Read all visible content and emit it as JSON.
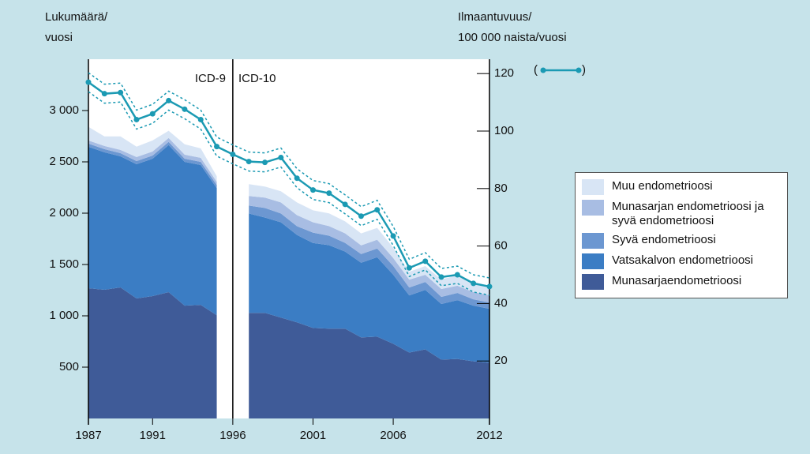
{
  "chart_data": {
    "type": "stacked-area",
    "y_label": [
      "Lukumäärä/",
      "vuosi"
    ],
    "y2_label": [
      "Ilmaantuvuus/",
      "100 000 naista/vuosi"
    ],
    "annotations": [
      "ICD-9",
      "ICD-10"
    ],
    "divider": 1996,
    "x": [
      1987,
      1988,
      1989,
      1990,
      1991,
      1992,
      1993,
      1994,
      1995,
      1996,
      1997,
      1998,
      1999,
      2000,
      2001,
      2002,
      2003,
      2004,
      2005,
      2006,
      2007,
      2008,
      2009,
      2010,
      2011,
      2012
    ],
    "xlim": [
      1987,
      2012
    ],
    "xticks": [
      1987,
      1991,
      1996,
      2001,
      2006,
      2012
    ],
    "ylim": [
      0,
      3500
    ],
    "yticks": [
      500,
      {
        "value": 1000,
        "label": "1 000"
      },
      {
        "value": 1500,
        "label": "1 500"
      },
      {
        "value": 2000,
        "label": "2 000"
      },
      {
        "value": 2500,
        "label": "2 500"
      },
      {
        "value": 3000,
        "label": "3 000"
      }
    ],
    "y2lim": [
      0,
      125
    ],
    "y2ticks": [
      20,
      40,
      60,
      80,
      100,
      120
    ],
    "series": [
      {
        "name": "Munasarjaendometrioosi",
        "color": "#3f5b98",
        "values": [
          1269,
          1254,
          1277,
          1169,
          1192,
          1231,
          1099,
          1107,
          1006,
          null,
          1029,
          1029,
          983,
          937,
          882,
          875,
          875,
          789,
          797,
          728,
          642,
          673,
          573,
          580,
          557,
          542
        ]
      },
      {
        "name": "Vatsakalvon endometrioosi",
        "color": "#3b7dc4",
        "values": [
          1378,
          1339,
          1277,
          1308,
          1339,
          1432,
          1401,
          1362,
          1238,
          null,
          968,
          929,
          929,
          851,
          828,
          813,
          751,
          728,
          774,
          673,
          557,
          580,
          542,
          573,
          542,
          526
        ]
      },
      {
        "name": "Syvä endometrioosi",
        "color": "#6c97d1",
        "values": [
          31,
          31,
          31,
          31,
          31,
          31,
          31,
          31,
          31,
          null,
          77,
          93,
          85,
          85,
          101,
          93,
          85,
          85,
          85,
          85,
          77,
          77,
          70,
          70,
          62,
          62
        ]
      },
      {
        "name": "Munasarjan endometrioosi ja syvä endometrioosi",
        "color": "#a8bde3",
        "values": [
          31,
          31,
          31,
          39,
          39,
          39,
          39,
          39,
          31,
          null,
          93,
          101,
          108,
          108,
          101,
          93,
          93,
          85,
          85,
          77,
          77,
          70,
          77,
          70,
          70,
          70
        ]
      },
      {
        "name": "Muu endometrioosi",
        "color": "#d8e5f5",
        "values": [
          132,
          93,
          132,
          101,
          108,
          70,
          101,
          93,
          54,
          null,
          116,
          108,
          108,
          124,
          116,
          124,
          116,
          116,
          116,
          101,
          77,
          85,
          93,
          101,
          101,
          93
        ]
      }
    ],
    "line": {
      "color": "#1b9ab3",
      "axis": "y2",
      "legend": [
        "(",
        ")"
      ],
      "values": [
        117,
        113,
        113.4,
        104,
        106,
        110.6,
        107.6,
        104,
        94.6,
        91.9,
        89.4,
        89.1,
        90.8,
        83.6,
        79.5,
        78.4,
        74.5,
        70.4,
        72.6,
        63.5,
        52.4,
        54.7,
        49.2,
        50,
        47,
        45.9
      ],
      "upper": [
        120.3,
        116.3,
        116.7,
        107.3,
        109.3,
        113.9,
        110.9,
        107.3,
        97.9,
        95.2,
        92.7,
        92.4,
        94.1,
        86.9,
        82.8,
        81.7,
        77.8,
        73.7,
        75.9,
        66.8,
        55.4,
        57.7,
        52.2,
        53,
        50,
        48.9
      ],
      "lower": [
        113.7,
        109.7,
        110.1,
        100.7,
        102.7,
        107.3,
        104.3,
        100.7,
        91.3,
        88.6,
        86.1,
        85.8,
        87.5,
        80.3,
        76.2,
        75.1,
        71.2,
        67.1,
        69.3,
        60.2,
        49.4,
        51.7,
        46.2,
        47,
        44,
        42.9
      ]
    }
  }
}
